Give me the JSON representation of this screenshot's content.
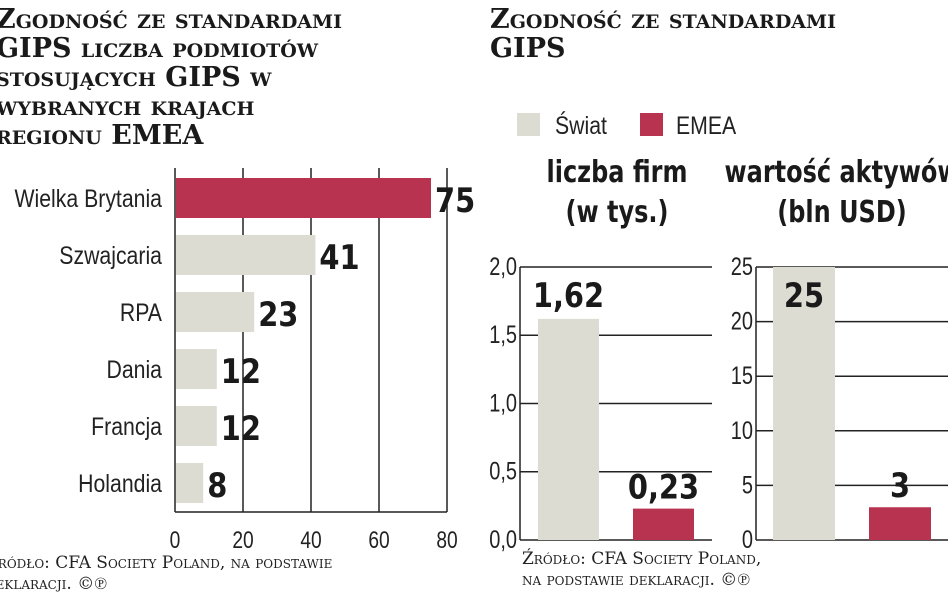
{
  "colors": {
    "world": "#dcdcd2",
    "emea": "#b8334f",
    "grid": "#222222"
  },
  "chart_data": [
    {
      "type": "bar",
      "orientation": "horizontal",
      "title": "Zgodność ze standardami GIPS liczba podmiotów stosujących GIPS w wybranych krajach regionu EMEA",
      "title_lines": [
        "Zgodność ze standardami",
        "GIPS liczba podmiotów",
        "stosujących GIPS w",
        "wybranych krajach",
        "regionu EMEA"
      ],
      "categories": [
        "Wielka Brytania",
        "Szwajcaria",
        "RPA",
        "Dania",
        "Francja",
        "Holandia"
      ],
      "values": [
        75,
        41,
        23,
        12,
        12,
        8
      ],
      "value_labels": [
        "75",
        "41",
        "23",
        "12",
        "12",
        "8"
      ],
      "highlight": "Wielka Brytania",
      "xlim": [
        0,
        80
      ],
      "xticks": [
        "0",
        "20",
        "40",
        "60",
        "80"
      ],
      "grid": true,
      "source": "Źródło: CFA Society Poland, na podstawie deklaracji. ©℗",
      "source_lines": [
        "Źródło: CFA Society Poland, na podstawie",
        "deklaracji. ©℗"
      ]
    },
    {
      "type": "bar",
      "title": "Zgodność ze standardami GIPS",
      "title_lines": [
        "Zgodność ze standardami",
        "GIPS"
      ],
      "legend": [
        "Świat",
        "EMEA"
      ],
      "legend_position": "top-left",
      "panels": [
        {
          "subtitle_lines": [
            "liczba firm",
            "(w tys.)"
          ],
          "categories": [
            "Świat",
            "EMEA"
          ],
          "values": [
            1.62,
            0.23
          ],
          "value_labels": [
            "1,62",
            "0,23"
          ],
          "ylim": [
            0,
            2.0
          ],
          "yticks": [
            "0,0",
            "0,5",
            "1,0",
            "1,5",
            "2,0"
          ]
        },
        {
          "subtitle_lines": [
            "wartość aktywów",
            "(bln USD)"
          ],
          "categories": [
            "Świat",
            "EMEA"
          ],
          "values": [
            25,
            3
          ],
          "value_labels": [
            "25",
            "3"
          ],
          "ylim": [
            0,
            25
          ],
          "yticks": [
            "0",
            "5",
            "10",
            "15",
            "20",
            "25"
          ]
        }
      ],
      "grid": true,
      "source_lines": [
        "Źródło: CFA Society Poland,",
        "na podstawie deklaracji. ©℗"
      ]
    }
  ]
}
